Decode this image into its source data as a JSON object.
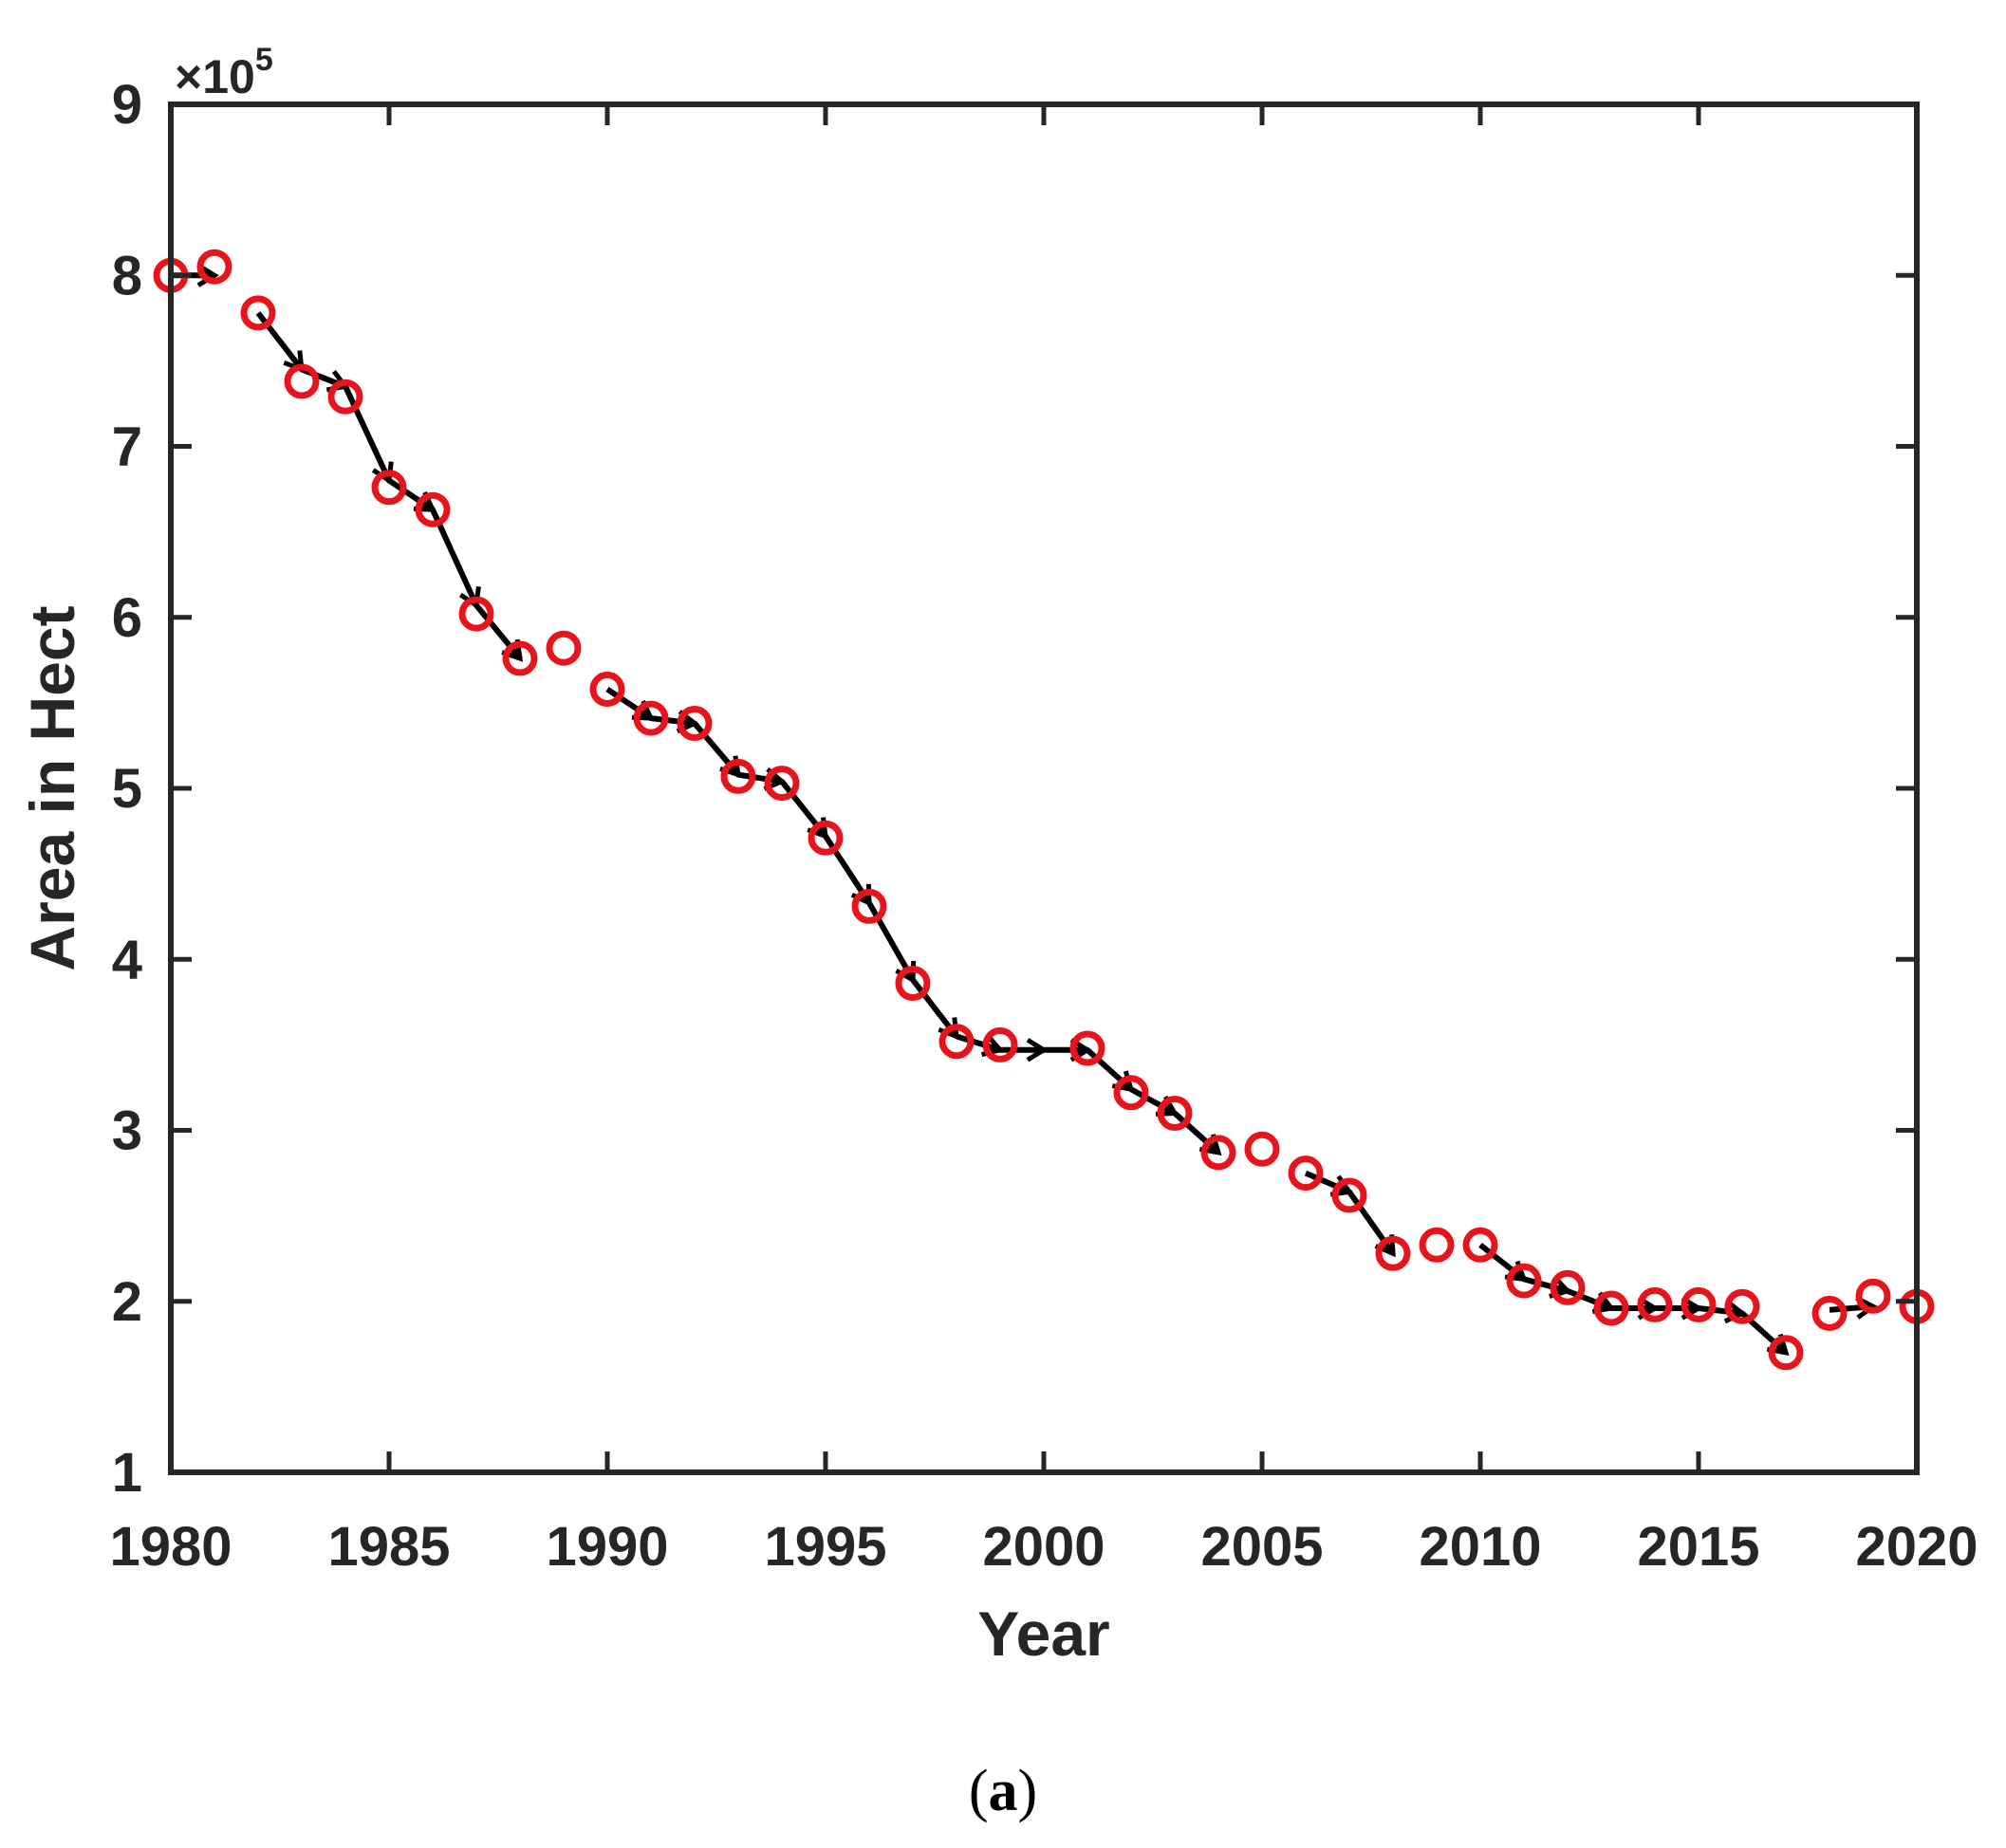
{
  "chart_data": {
    "type": "scatter",
    "title": "",
    "xlabel": "Year",
    "ylabel": "Area in Hect",
    "y_multiplier_label": "×10",
    "y_multiplier_exponent": "5",
    "xlim": [
      1980,
      2020
    ],
    "ylim": [
      1,
      9
    ],
    "xticks": [
      1980,
      1985,
      1990,
      1995,
      2000,
      2005,
      2010,
      2015,
      2020
    ],
    "yticks": [
      1,
      2,
      3,
      4,
      5,
      6,
      7,
      8,
      9
    ],
    "grid": false,
    "legend": "none",
    "colors": {
      "markers": "#e8141c",
      "line": "#000000",
      "axes": "#262626"
    },
    "series": [
      {
        "marker": "circle",
        "x": [
          1980,
          1981,
          1982,
          1983,
          1984,
          1985,
          1986,
          1987,
          1988,
          1989,
          1990,
          1991,
          1992,
          1993,
          1994,
          1995,
          1996,
          1997,
          1998,
          1999,
          2001,
          2002,
          2003,
          2004,
          2005,
          2006,
          2007,
          2008,
          2009,
          2010,
          2011,
          2012,
          2013,
          2014,
          2015,
          2016,
          2017,
          2018,
          2019,
          2020
        ],
        "y": [
          8.0,
          8.05,
          7.78,
          7.38,
          7.29,
          6.76,
          6.63,
          6.02,
          5.76,
          5.82,
          5.58,
          5.41,
          5.38,
          5.07,
          5.03,
          4.71,
          4.31,
          3.86,
          3.52,
          3.5,
          3.48,
          3.22,
          3.1,
          2.87,
          2.89,
          2.75,
          2.62,
          2.28,
          2.33,
          2.33,
          2.12,
          2.08,
          1.96,
          1.98,
          1.98,
          1.97,
          1.7,
          1.93,
          2.03,
          1.97
        ]
      }
    ],
    "trend_segments": [
      {
        "x": [
          1980,
          1981
        ],
        "y": [
          8.0,
          8.0
        ]
      },
      {
        "x": [
          1982,
          1983,
          1984,
          1985,
          1986,
          1987,
          1988
        ],
        "y": [
          7.78,
          7.45,
          7.35,
          6.8,
          6.63,
          6.07,
          5.76
        ]
      },
      {
        "x": [
          1990,
          1991,
          1992,
          1993,
          1994,
          1995,
          1996,
          1997,
          1998,
          1999,
          2000,
          2001,
          2002,
          2003,
          2004
        ],
        "y": [
          5.58,
          5.41,
          5.38,
          5.08,
          5.04,
          4.72,
          4.33,
          3.88,
          3.55,
          3.47,
          3.47,
          3.47,
          3.24,
          3.1,
          2.87
        ]
      },
      {
        "x": [
          2006,
          2007,
          2008
        ],
        "y": [
          2.75,
          2.64,
          2.28
        ]
      },
      {
        "x": [
          2010,
          2011,
          2012,
          2013,
          2014,
          2015,
          2016,
          2017
        ],
        "y": [
          2.33,
          2.13,
          2.06,
          1.96,
          1.96,
          1.96,
          1.93,
          1.7
        ]
      },
      {
        "x": [
          2018,
          2019
        ],
        "y": [
          1.95,
          1.97
        ]
      }
    ]
  },
  "caption": {
    "open": "(",
    "letter": "a",
    "close": ")"
  }
}
